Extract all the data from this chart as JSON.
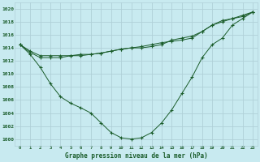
{
  "title": "Graphe pression niveau de la mer (hPa)",
  "bg_color": "#c8eaf0",
  "grid_color": "#b0d0d8",
  "line_color": "#1a5c2a",
  "xlim": [
    -0.5,
    23.5
  ],
  "ylim": [
    999,
    1021
  ],
  "yticks": [
    1000,
    1002,
    1004,
    1006,
    1008,
    1010,
    1012,
    1014,
    1016,
    1018,
    1020
  ],
  "xticks": [
    0,
    1,
    2,
    3,
    4,
    5,
    6,
    7,
    8,
    9,
    10,
    11,
    12,
    13,
    14,
    15,
    16,
    17,
    18,
    19,
    20,
    21,
    22,
    23
  ],
  "series1": [
    1014.5,
    1013.5,
    1012.8,
    1012.8,
    1012.8,
    1012.8,
    1012.8,
    1013.0,
    1013.2,
    1013.5,
    1013.8,
    1014.0,
    1014.2,
    1014.5,
    1014.8,
    1015.0,
    1015.2,
    1015.5,
    1016.5,
    1017.5,
    1018.2,
    1018.5,
    1018.8,
    1019.5
  ],
  "series2": [
    1014.5,
    1013.0,
    1011.0,
    1008.5,
    1006.5,
    1005.5,
    1004.8,
    1004.0,
    1002.5,
    1001.0,
    1000.2,
    1000.0,
    1000.2,
    1001.0,
    1002.5,
    1004.5,
    1007.0,
    1009.5,
    1012.5,
    1014.5,
    1015.5,
    1017.5,
    1018.5,
    1019.5
  ],
  "series3": [
    1014.5,
    1013.3,
    1012.5,
    1012.5,
    1012.5,
    1012.8,
    1013.0,
    1013.0,
    1013.2,
    1013.5,
    1013.8,
    1014.0,
    1014.0,
    1014.2,
    1014.5,
    1015.2,
    1015.5,
    1015.8,
    1016.5,
    1017.5,
    1018.0,
    1018.5,
    1019.0,
    1019.5
  ]
}
